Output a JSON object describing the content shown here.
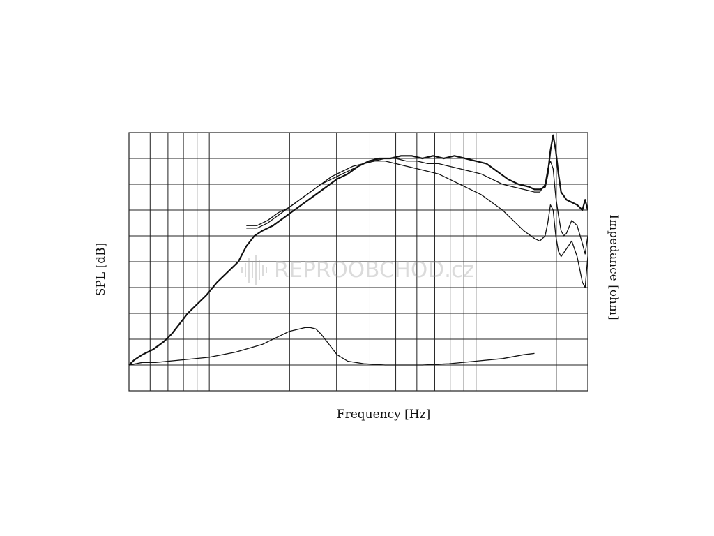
{
  "chart_data": {
    "type": "line",
    "title": "",
    "xlabel": "Frequency [Hz]",
    "ylabel": "SPL [dB]",
    "ylabel_right": "Impedance [ohm]",
    "x_scale": "log",
    "grid": true,
    "legend": "none",
    "watermark": "REPROOBCHOD.cz",
    "series": [
      {
        "role": "spl-on-axis",
        "stroke_width": 2.2,
        "points": [
          [
            0.0,
            0.1
          ],
          [
            0.02,
            0.12
          ],
          [
            0.05,
            0.14
          ],
          [
            0.09,
            0.16
          ],
          [
            0.13,
            0.19
          ],
          [
            0.16,
            0.22
          ],
          [
            0.19,
            0.26
          ],
          [
            0.22,
            0.3
          ],
          [
            0.25,
            0.33
          ],
          [
            0.29,
            0.37
          ],
          [
            0.33,
            0.42
          ],
          [
            0.37,
            0.46
          ],
          [
            0.41,
            0.5
          ],
          [
            0.44,
            0.56
          ],
          [
            0.47,
            0.6
          ],
          [
            0.5,
            0.62
          ],
          [
            0.54,
            0.64
          ],
          [
            0.58,
            0.67
          ],
          [
            0.62,
            0.7
          ],
          [
            0.66,
            0.73
          ],
          [
            0.7,
            0.76
          ],
          [
            0.74,
            0.79
          ],
          [
            0.78,
            0.82
          ],
          [
            0.82,
            0.84
          ],
          [
            0.86,
            0.87
          ],
          [
            0.9,
            0.89
          ],
          [
            0.94,
            0.9
          ],
          [
            0.98,
            0.9
          ],
          [
            1.02,
            0.91
          ],
          [
            1.06,
            0.91
          ],
          [
            1.1,
            0.9
          ],
          [
            1.14,
            0.91
          ],
          [
            1.18,
            0.9
          ],
          [
            1.22,
            0.91
          ],
          [
            1.26,
            0.9
          ],
          [
            1.3,
            0.89
          ],
          [
            1.34,
            0.88
          ],
          [
            1.38,
            0.85
          ],
          [
            1.42,
            0.82
          ],
          [
            1.46,
            0.8
          ],
          [
            1.5,
            0.79
          ],
          [
            1.52,
            0.78
          ],
          [
            1.54,
            0.78
          ],
          [
            1.56,
            0.79
          ],
          [
            1.57,
            0.84
          ],
          [
            1.58,
            0.93
          ],
          [
            1.59,
            0.99
          ],
          [
            1.6,
            0.93
          ],
          [
            1.61,
            0.84
          ],
          [
            1.62,
            0.77
          ],
          [
            1.64,
            0.74
          ],
          [
            1.66,
            0.73
          ],
          [
            1.68,
            0.72
          ],
          [
            1.7,
            0.7
          ],
          [
            1.71,
            0.74
          ],
          [
            1.72,
            0.7
          ]
        ]
      },
      {
        "role": "spl-off-axis-1",
        "stroke_width": 1.3,
        "points": [
          [
            0.44,
            0.64
          ],
          [
            0.48,
            0.64
          ],
          [
            0.52,
            0.66
          ],
          [
            0.56,
            0.69
          ],
          [
            0.6,
            0.71
          ],
          [
            0.64,
            0.74
          ],
          [
            0.68,
            0.77
          ],
          [
            0.72,
            0.8
          ],
          [
            0.76,
            0.83
          ],
          [
            0.8,
            0.85
          ],
          [
            0.84,
            0.87
          ],
          [
            0.88,
            0.88
          ],
          [
            0.92,
            0.89
          ],
          [
            0.96,
            0.9
          ],
          [
            1.0,
            0.9
          ],
          [
            1.04,
            0.89
          ],
          [
            1.08,
            0.89
          ],
          [
            1.12,
            0.88
          ],
          [
            1.16,
            0.88
          ],
          [
            1.2,
            0.87
          ],
          [
            1.24,
            0.86
          ],
          [
            1.28,
            0.85
          ],
          [
            1.32,
            0.84
          ],
          [
            1.36,
            0.82
          ],
          [
            1.4,
            0.8
          ],
          [
            1.44,
            0.79
          ],
          [
            1.48,
            0.78
          ],
          [
            1.52,
            0.77
          ],
          [
            1.54,
            0.77
          ],
          [
            1.56,
            0.8
          ],
          [
            1.57,
            0.86
          ],
          [
            1.58,
            0.89
          ],
          [
            1.59,
            0.86
          ],
          [
            1.6,
            0.75
          ],
          [
            1.61,
            0.68
          ],
          [
            1.62,
            0.62
          ],
          [
            1.63,
            0.6
          ],
          [
            1.64,
            0.61
          ],
          [
            1.66,
            0.66
          ],
          [
            1.68,
            0.64
          ],
          [
            1.7,
            0.57
          ],
          [
            1.71,
            0.53
          ],
          [
            1.72,
            0.6
          ]
        ]
      },
      {
        "role": "spl-off-axis-2",
        "stroke_width": 1.3,
        "points": [
          [
            0.44,
            0.63
          ],
          [
            0.48,
            0.63
          ],
          [
            0.52,
            0.65
          ],
          [
            0.56,
            0.68
          ],
          [
            0.6,
            0.71
          ],
          [
            0.64,
            0.74
          ],
          [
            0.68,
            0.77
          ],
          [
            0.72,
            0.8
          ],
          [
            0.76,
            0.82
          ],
          [
            0.8,
            0.84
          ],
          [
            0.84,
            0.86
          ],
          [
            0.88,
            0.88
          ],
          [
            0.92,
            0.89
          ],
          [
            0.96,
            0.89
          ],
          [
            1.0,
            0.88
          ],
          [
            1.04,
            0.87
          ],
          [
            1.08,
            0.86
          ],
          [
            1.12,
            0.85
          ],
          [
            1.16,
            0.84
          ],
          [
            1.2,
            0.82
          ],
          [
            1.24,
            0.8
          ],
          [
            1.28,
            0.78
          ],
          [
            1.32,
            0.76
          ],
          [
            1.36,
            0.73
          ],
          [
            1.4,
            0.7
          ],
          [
            1.44,
            0.66
          ],
          [
            1.48,
            0.62
          ],
          [
            1.52,
            0.59
          ],
          [
            1.54,
            0.58
          ],
          [
            1.56,
            0.6
          ],
          [
            1.57,
            0.65
          ],
          [
            1.58,
            0.72
          ],
          [
            1.59,
            0.7
          ],
          [
            1.6,
            0.6
          ],
          [
            1.61,
            0.54
          ],
          [
            1.62,
            0.52
          ],
          [
            1.64,
            0.55
          ],
          [
            1.66,
            0.58
          ],
          [
            1.68,
            0.52
          ],
          [
            1.7,
            0.42
          ],
          [
            1.71,
            0.4
          ],
          [
            1.72,
            0.52
          ]
        ]
      },
      {
        "role": "impedance",
        "stroke_width": 1.3,
        "points": [
          [
            0.0,
            0.1
          ],
          [
            0.05,
            0.11
          ],
          [
            0.1,
            0.11
          ],
          [
            0.2,
            0.12
          ],
          [
            0.3,
            0.13
          ],
          [
            0.4,
            0.15
          ],
          [
            0.5,
            0.18
          ],
          [
            0.56,
            0.21
          ],
          [
            0.6,
            0.23
          ],
          [
            0.64,
            0.24
          ],
          [
            0.66,
            0.245
          ],
          [
            0.68,
            0.245
          ],
          [
            0.7,
            0.24
          ],
          [
            0.72,
            0.22
          ],
          [
            0.75,
            0.18
          ],
          [
            0.78,
            0.14
          ],
          [
            0.82,
            0.115
          ],
          [
            0.88,
            0.105
          ],
          [
            0.96,
            0.1
          ],
          [
            1.1,
            0.1
          ],
          [
            1.2,
            0.105
          ],
          [
            1.3,
            0.115
          ],
          [
            1.4,
            0.125
          ],
          [
            1.48,
            0.14
          ],
          [
            1.52,
            0.145
          ]
        ]
      }
    ]
  }
}
